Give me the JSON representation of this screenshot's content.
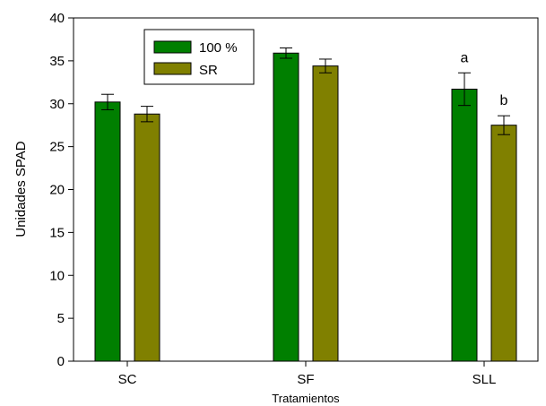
{
  "chart_data": {
    "type": "bar",
    "categories": [
      "SC",
      "SF",
      "SLL"
    ],
    "series": [
      {
        "name": "100 %",
        "color": "#007f00",
        "values": [
          30.2,
          35.9,
          31.7
        ],
        "errors": [
          0.9,
          0.6,
          1.9
        ]
      },
      {
        "name": "SR",
        "color": "#808000",
        "values": [
          28.8,
          34.4,
          27.5
        ],
        "errors": [
          0.9,
          0.8,
          1.1
        ]
      }
    ],
    "title": "",
    "xlabel": "Tratamientos",
    "ylabel": "Unidades SPAD",
    "ylim": [
      0,
      40
    ],
    "yticks": [
      0,
      5,
      10,
      15,
      20,
      25,
      30,
      35,
      40
    ],
    "ytick_labels": [
      "0",
      "5",
      "10",
      "15",
      "20",
      "25",
      "30",
      "35",
      "40"
    ],
    "grid": false,
    "legend_position": "top-left",
    "annotations": [
      {
        "text": "a",
        "category": "SLL",
        "series": "100 %"
      },
      {
        "text": "b",
        "category": "SLL",
        "series": "SR"
      }
    ]
  }
}
